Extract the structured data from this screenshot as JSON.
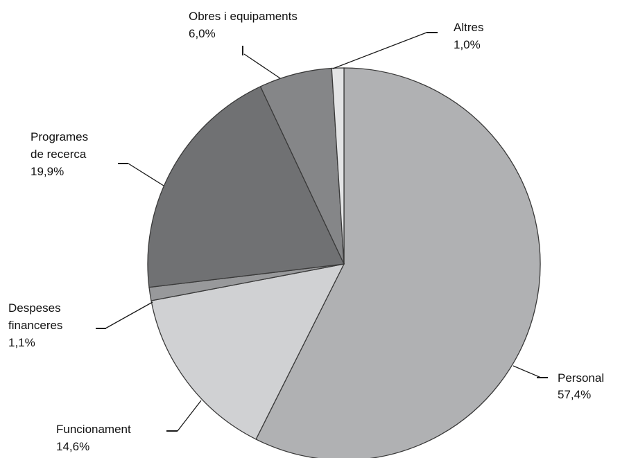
{
  "chart_data": {
    "type": "pie",
    "slices": [
      {
        "name": "Personal",
        "value": 57.4,
        "label": "57,4%",
        "color": "#b0b1b3"
      },
      {
        "name": "Funcionament",
        "value": 14.6,
        "label": "14,6%",
        "color": "#d0d1d3"
      },
      {
        "name": "Despeses financeres",
        "name_lines": [
          "Despeses",
          "financeres"
        ],
        "value": 1.1,
        "label": "1,1%",
        "color": "#98999b"
      },
      {
        "name": "Programes de recerca",
        "name_lines": [
          "Programes",
          "de recerca"
        ],
        "value": 19.9,
        "label": "19,9%",
        "color": "#707173"
      },
      {
        "name": "Obres i equipaments",
        "value": 6.0,
        "label": "6,0%",
        "color": "#858688"
      },
      {
        "name": "Altres",
        "value": 1.0,
        "label": "1,0%",
        "color": "#e3e4e5"
      }
    ],
    "start_angle_deg": 0,
    "direction": "clockwise"
  }
}
